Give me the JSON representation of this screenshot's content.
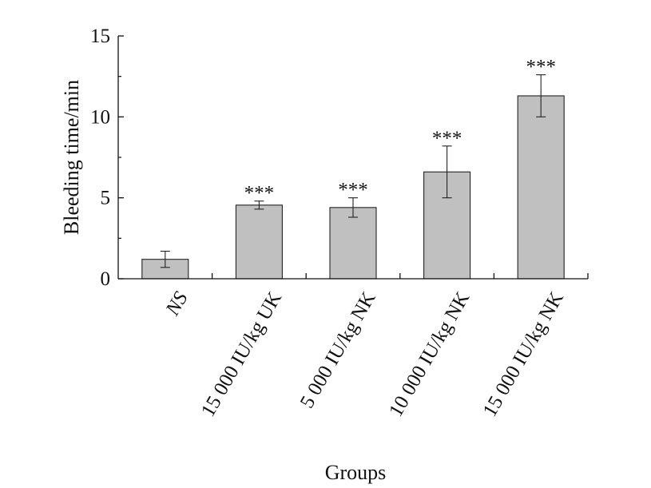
{
  "chart_data": {
    "type": "bar",
    "title": "",
    "xlabel": "Groups",
    "ylabel": "Bleeding time/min",
    "ylim": [
      0,
      15
    ],
    "yticks": [
      "0",
      "5",
      "10",
      "15"
    ],
    "ytick_values": [
      0,
      5,
      10,
      15
    ],
    "categories": [
      "NS",
      "15 000 IU/kg UK",
      "5 000 IU/kg NK",
      "10 000 IU/kg NK",
      "15 000 IU/kg NK"
    ],
    "italic_categories": [
      true,
      false,
      false,
      false,
      false
    ],
    "values": [
      1.2,
      4.55,
      4.4,
      6.6,
      11.3
    ],
    "errors": [
      0.5,
      0.25,
      0.6,
      1.6,
      1.3
    ],
    "significance": [
      "",
      "***",
      "***",
      "***",
      "***"
    ],
    "bar_color": "#c0c0c0",
    "grid": false,
    "legend": "none"
  }
}
